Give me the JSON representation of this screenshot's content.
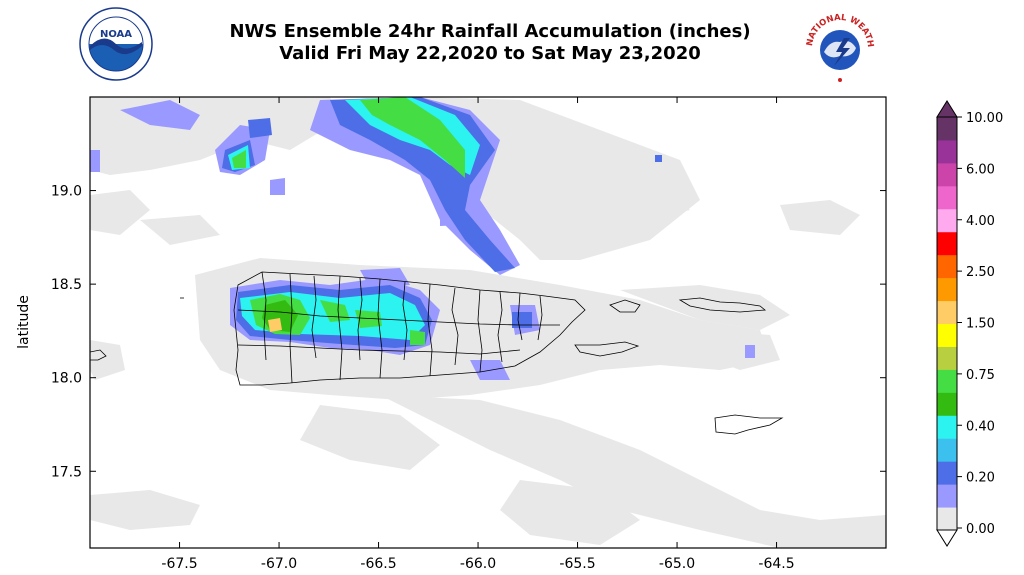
{
  "title": {
    "line1": "NWS Ensemble 24hr Rainfall Accumulation (inches)",
    "line2": "Valid Fri May 22,2020 to Sat May 23,2020"
  },
  "logos": {
    "left": {
      "icon": "noaa-logo-icon",
      "text": "NOAA"
    },
    "right": {
      "icon": "national-weather-service-logo-icon",
      "text": "NATIONAL WEATHER SERVICE"
    }
  },
  "axes": {
    "ylabel": "latitude",
    "xticks": [
      "-67.5",
      "-67.0",
      "-66.5",
      "-66.0",
      "-65.5",
      "-65.0",
      "-64.5"
    ],
    "xtick_values": [
      -67.5,
      -67.0,
      -66.5,
      -66.0,
      -65.5,
      -65.0,
      -64.5
    ],
    "yticks": [
      "19.0",
      "18.5",
      "18.0",
      "17.5"
    ],
    "ytick_values": [
      19.0,
      18.5,
      18.0,
      17.5
    ],
    "xlim": [
      -67.95,
      -63.95
    ],
    "ylim": [
      17.09,
      19.5
    ]
  },
  "colorbar": {
    "labels": [
      "10.00",
      "6.00",
      "4.00",
      "2.50",
      "1.50",
      "0.75",
      "0.40",
      "0.20",
      "0.00"
    ],
    "colors": [
      "#e8e8e8",
      "#9999ff",
      "#4d6ee6",
      "#3cc0ee",
      "#2cf2f0",
      "#33bb11",
      "#44dd44",
      "#b8d040",
      "#ffff00",
      "#ffcc66",
      "#ff9900",
      "#ff6600",
      "#ff0000",
      "#ffaaee",
      "#ee66cc",
      "#cc44aa",
      "#993399",
      "#663366"
    ]
  }
}
